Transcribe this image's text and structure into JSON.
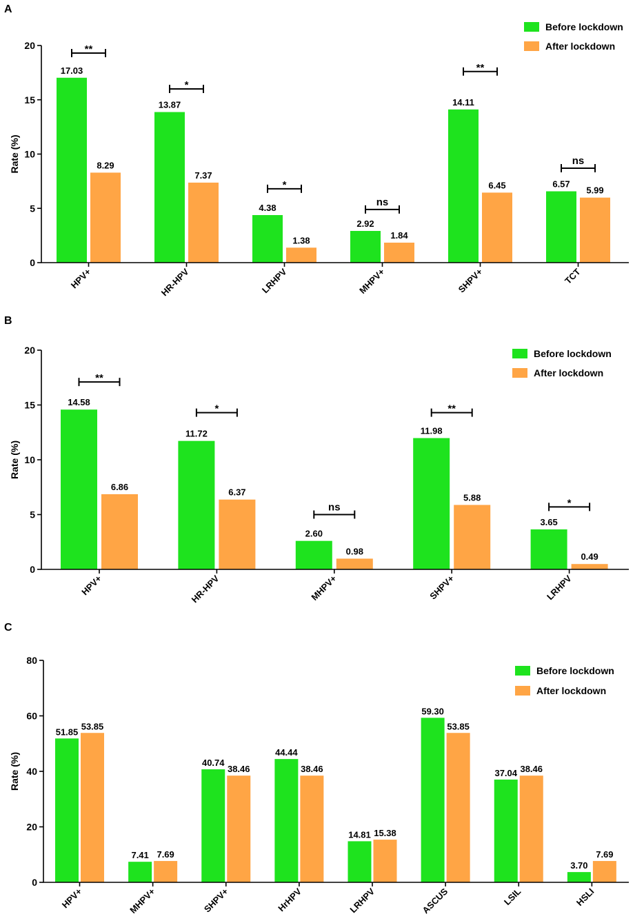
{
  "legend": {
    "before": "Before lockdown",
    "after": "After lockdown"
  },
  "colors": {
    "before": "#1ee31e",
    "after": "#ffa545"
  },
  "chart_data": [
    {
      "panel": "A",
      "type": "bar",
      "ylabel": "Rate (%)",
      "ylim": [
        0,
        20
      ],
      "yticks": [
        0,
        5,
        10,
        15,
        20
      ],
      "legend_position": "top-right",
      "categories": [
        "HPV+",
        "HR-HPV",
        "LRHPV",
        "MHPV+",
        "SHPV+",
        "TCT"
      ],
      "series": [
        {
          "name": "Before lockdown",
          "values": [
            17.03,
            13.87,
            4.38,
            2.92,
            14.11,
            6.57
          ],
          "labels": [
            "17.03",
            "13.87",
            "4.38",
            "2.92",
            "14.11",
            "6.57"
          ]
        },
        {
          "name": "After lockdown",
          "values": [
            8.29,
            7.37,
            1.38,
            1.84,
            6.45,
            5.99
          ],
          "labels": [
            "8.29",
            "7.37",
            "1.38",
            "1.84",
            "6.45",
            "5.99"
          ]
        }
      ],
      "significance": [
        {
          "category": "HPV+",
          "label": "**",
          "level": 19.3
        },
        {
          "category": "HR-HPV",
          "label": "*",
          "level": 16.0
        },
        {
          "category": "LRHPV",
          "label": "*",
          "level": 6.8
        },
        {
          "category": "MHPV+",
          "label": "ns",
          "level": 4.9
        },
        {
          "category": "SHPV+",
          "label": "**",
          "level": 17.6
        },
        {
          "category": "TCT",
          "label": "ns",
          "level": 8.7
        }
      ]
    },
    {
      "panel": "B",
      "type": "bar",
      "ylabel": "Rate (%)",
      "ylim": [
        0,
        20
      ],
      "yticks": [
        0,
        5,
        10,
        15,
        20
      ],
      "legend_position": "top-right",
      "categories": [
        "HPV+",
        "HR-HPV",
        "MHPV+",
        "SHPV+",
        "LRHPV"
      ],
      "series": [
        {
          "name": "Before lockdown",
          "values": [
            14.58,
            11.72,
            2.6,
            11.98,
            3.65
          ],
          "labels": [
            "14.58",
            "11.72",
            "2.60",
            "11.98",
            "3.65"
          ]
        },
        {
          "name": "After lockdown",
          "values": [
            6.86,
            6.37,
            0.98,
            5.88,
            0.49
          ],
          "labels": [
            "6.86",
            "6.37",
            "0.98",
            "5.88",
            "0.49"
          ]
        }
      ],
      "significance": [
        {
          "category": "HPV+",
          "label": "**",
          "level": 17.1
        },
        {
          "category": "HR-HPV",
          "label": "*",
          "level": 14.3
        },
        {
          "category": "MHPV+",
          "label": "ns",
          "level": 5.0
        },
        {
          "category": "SHPV+",
          "label": "**",
          "level": 14.3
        },
        {
          "category": "LRHPV",
          "label": "*",
          "level": 5.7
        }
      ]
    },
    {
      "panel": "C",
      "type": "bar",
      "ylabel": "Rate (%)",
      "ylim": [
        0,
        80
      ],
      "yticks": [
        0,
        20,
        40,
        60,
        80
      ],
      "legend_position": "top-right",
      "categories": [
        "HPV+",
        "MHPV+",
        "SHPV+",
        "HrHPV",
        "LRHPV",
        "ASCUS",
        "LSIL",
        "HSLI"
      ],
      "series": [
        {
          "name": "Before lockdown",
          "values": [
            51.85,
            7.41,
            40.74,
            44.44,
            14.81,
            59.3,
            37.04,
            3.7
          ],
          "labels": [
            "51.85",
            "7.41",
            "40.74",
            "44.44",
            "14.81",
            "59.30",
            "37.04",
            "3.70"
          ]
        },
        {
          "name": "After lockdown",
          "values": [
            53.85,
            7.69,
            38.46,
            38.46,
            15.38,
            53.85,
            38.46,
            7.69
          ],
          "labels": [
            "53.85",
            "7.69",
            "38.46",
            "38.46",
            "15.38",
            "53.85",
            "38.46",
            "7.69"
          ]
        }
      ],
      "significance": []
    }
  ]
}
